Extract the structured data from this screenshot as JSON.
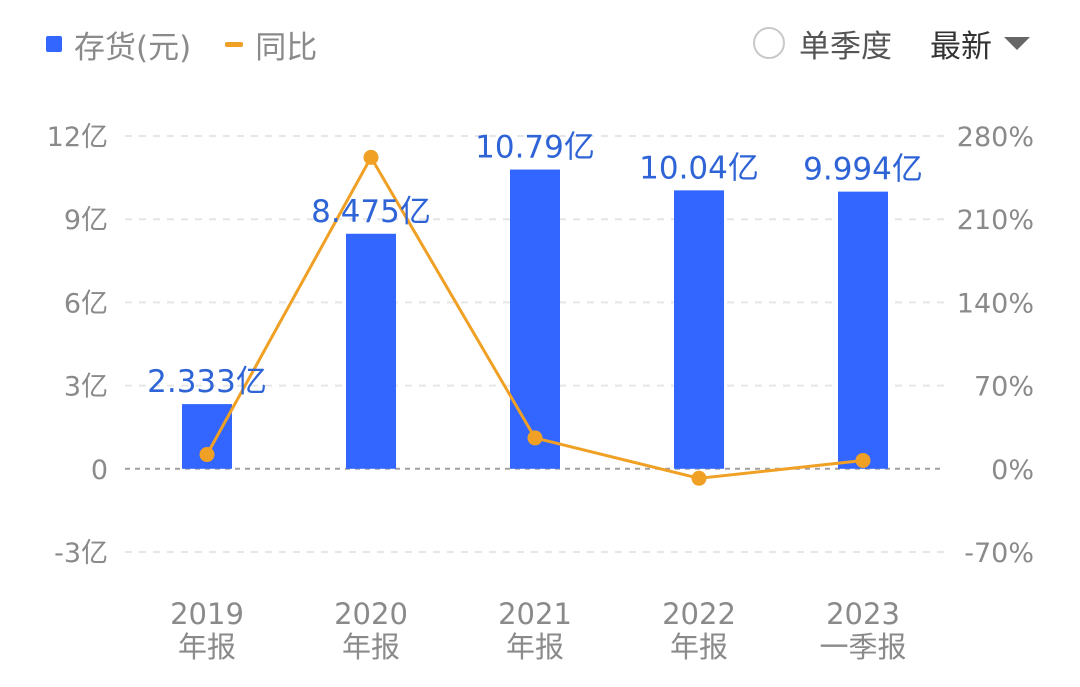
{
  "legend": {
    "bar_label": "存货(元)",
    "line_label": "同比"
  },
  "controls": {
    "quarter_toggle_label": "单季度",
    "quarter_toggle_checked": false,
    "dropdown_value": "最新"
  },
  "colors": {
    "bar": "#3366ff",
    "line": "#f0a024",
    "grid": "#e6e6e6",
    "zero_line": "#a0a0a0",
    "data_label": "#2e64d6"
  },
  "chart_data": {
    "type": "bar",
    "categories": [
      [
        "2019",
        "年报"
      ],
      [
        "2020",
        "年报"
      ],
      [
        "2021",
        "年报"
      ],
      [
        "2022",
        "年报"
      ],
      [
        "2023",
        "一季报"
      ]
    ],
    "series": [
      {
        "name": "存货(元)",
        "type": "bar",
        "axis": "left",
        "unit": "亿",
        "values": [
          2.333,
          8.475,
          10.79,
          10.04,
          9.994
        ],
        "labels": [
          "2.333亿",
          "8.475亿",
          "10.79亿",
          "10.04亿",
          "9.994亿"
        ]
      },
      {
        "name": "同比",
        "type": "line",
        "axis": "right",
        "unit": "%",
        "values": [
          12,
          262,
          26,
          -8,
          7
        ]
      }
    ],
    "left_axis": {
      "min": -3,
      "max": 12,
      "ticks": [
        12,
        9,
        6,
        3,
        0,
        -3
      ],
      "tick_labels": [
        "12亿",
        "9亿",
        "6亿",
        "3亿",
        "0",
        "-3亿"
      ]
    },
    "right_axis": {
      "min": -70,
      "max": 280,
      "ticks": [
        280,
        210,
        140,
        70,
        0,
        -70
      ],
      "tick_labels": [
        "280%",
        "210%",
        "140%",
        "70%",
        "0%",
        "-70%"
      ]
    },
    "grid": true,
    "legend_position": "top-left"
  }
}
